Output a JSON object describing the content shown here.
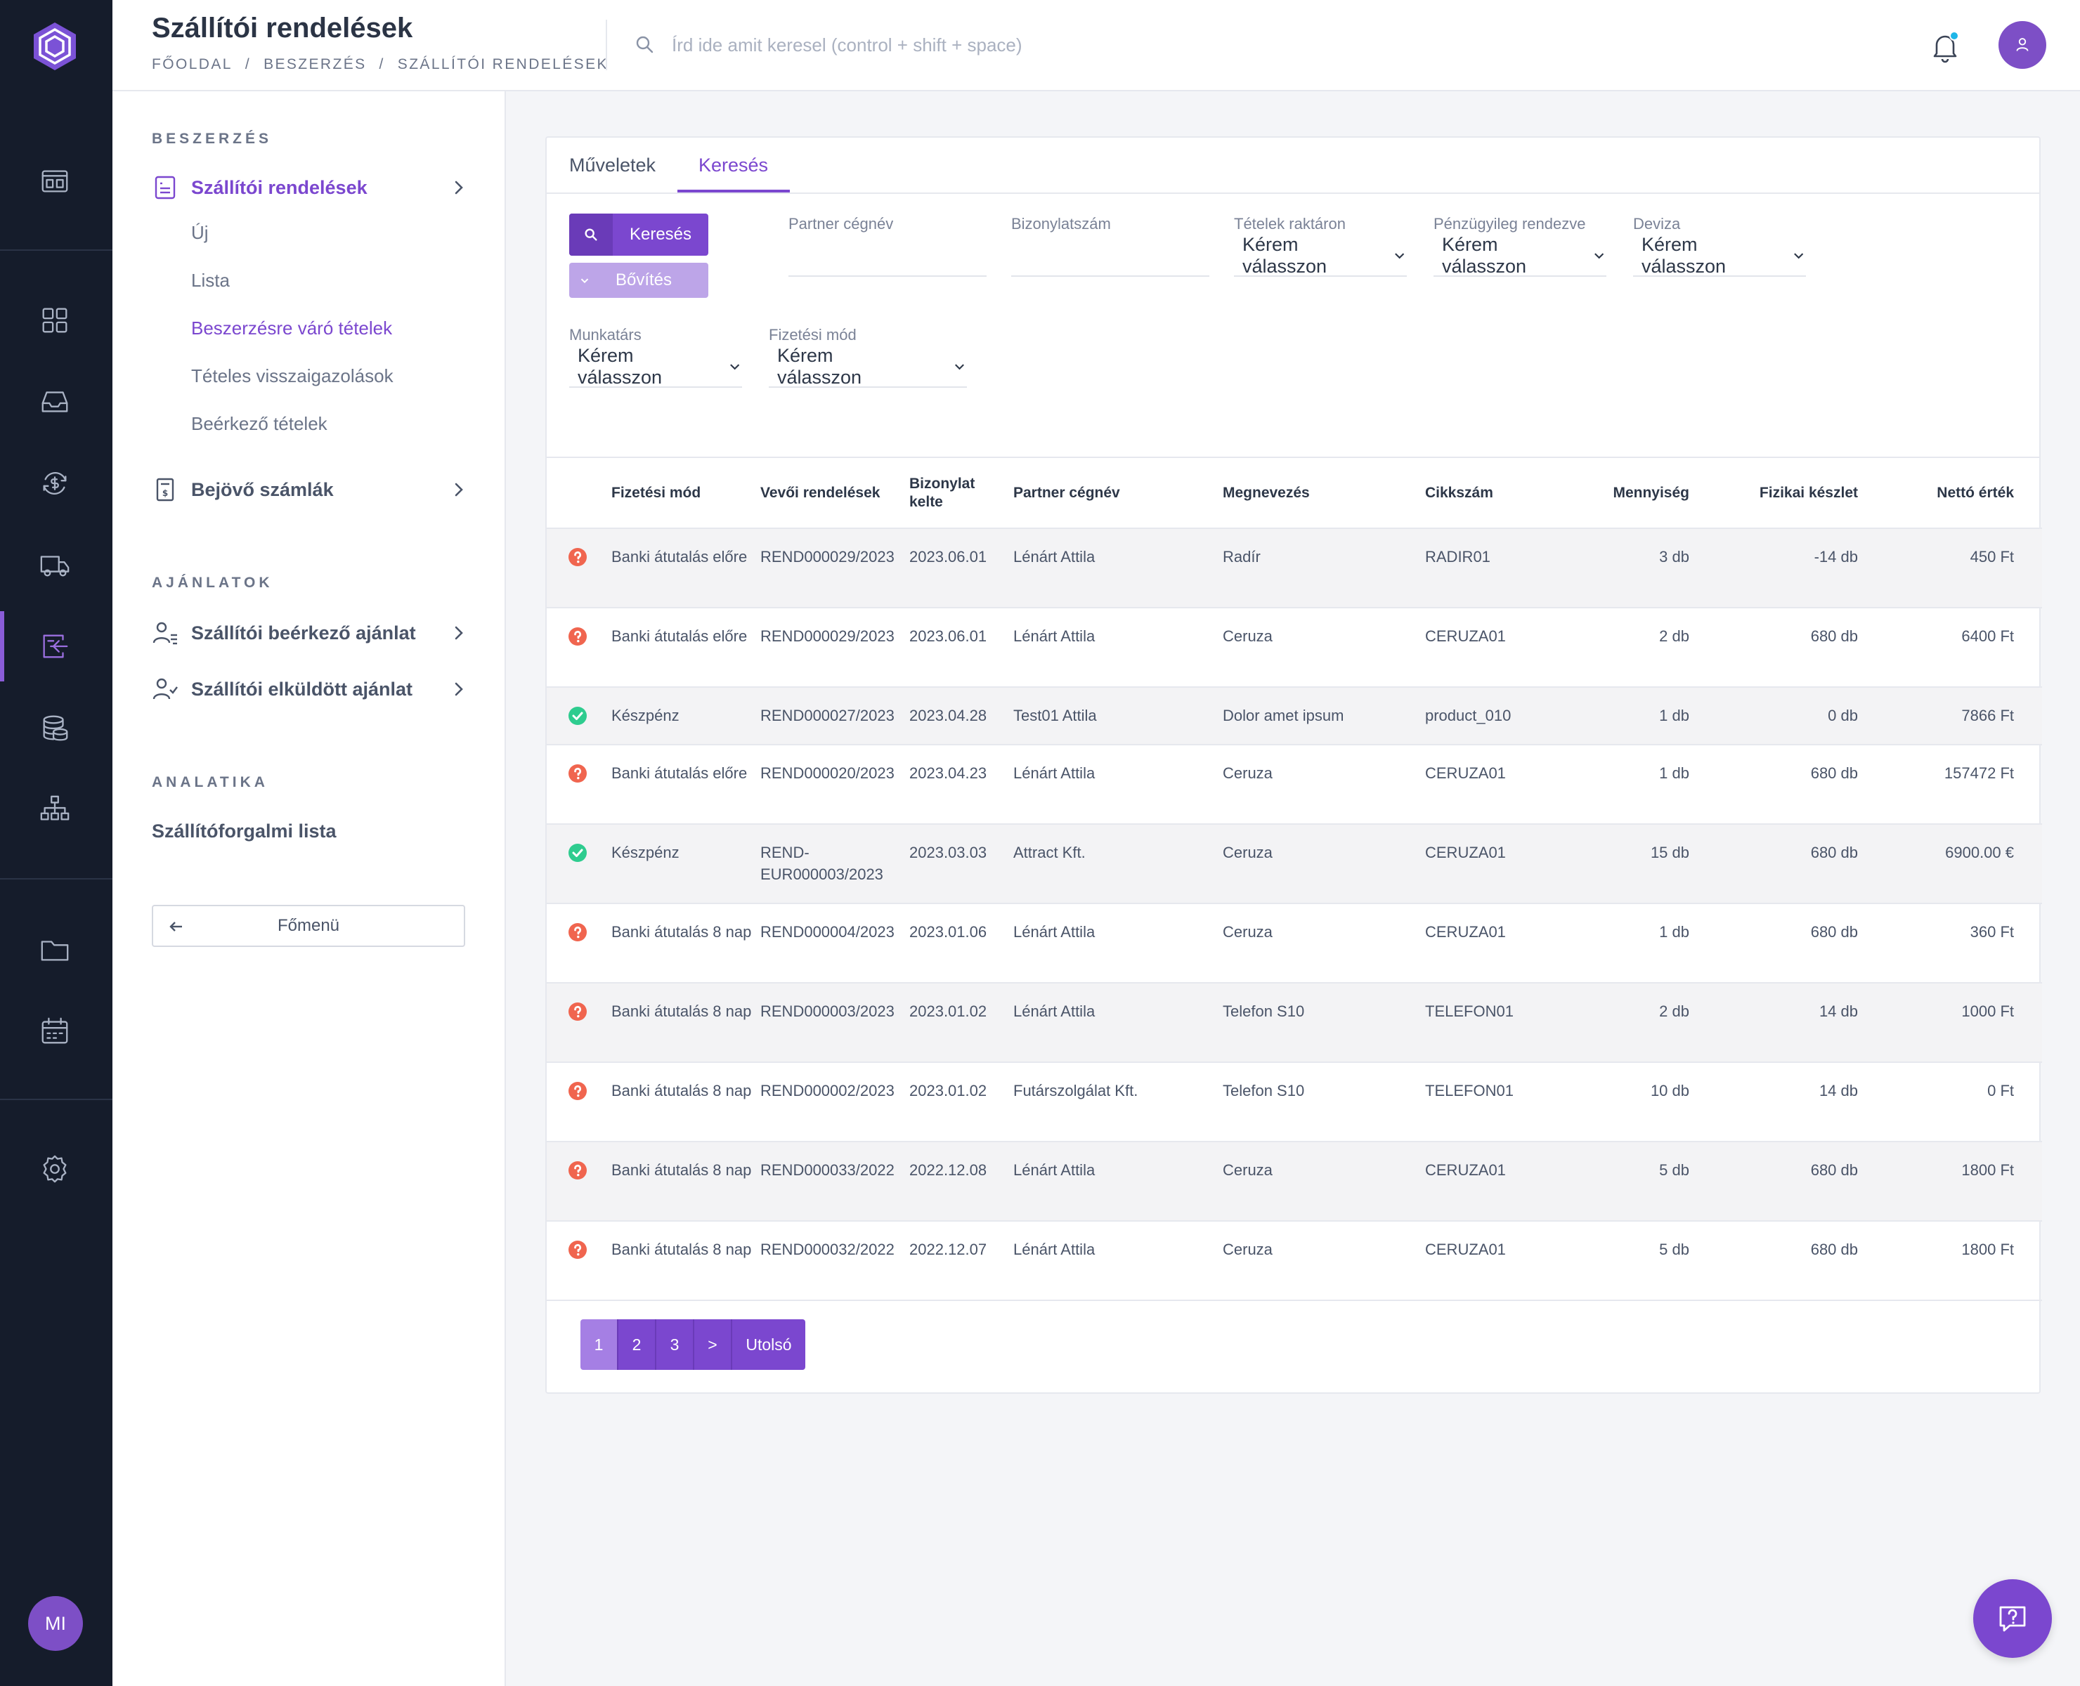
{
  "header": {
    "title": "Szállítói rendelések",
    "breadcrumb": [
      "FŐOLDAL",
      "/",
      "BESZERZÉS",
      "/",
      "SZÁLLÍTÓI RENDELÉSEK"
    ],
    "search_placeholder": "Írd ide amit keresel (control + shift + space)"
  },
  "rail": {
    "avatar_initials": "MI",
    "icons": [
      "dashboard-icon",
      "grid-icon",
      "inbox-icon",
      "currency-exchange-icon",
      "truck-icon",
      "purchase-icon",
      "coins-icon",
      "org-chart-icon",
      "folder-icon",
      "calendar-icon",
      "settings-icon"
    ]
  },
  "subnav": {
    "section_purchase": "BESZERZÉS",
    "supplier_orders": "Szállítói rendelések",
    "sub_items": [
      "Új",
      "Lista",
      "Beszerzésre váró tételek",
      "Tételes visszaigazolások",
      "Beérkező tételek"
    ],
    "incoming_invoices": "Bejövő számlák",
    "section_offers": "AJÁNLATOK",
    "supplier_incoming_offer": "Szállítói beérkező ajánlat",
    "supplier_sent_offer": "Szállítói elküldött ajánlat",
    "section_analytics": "ANALATIKA",
    "supplier_turnover_list": "Szállítóforgalmi lista",
    "back_label": "Főmenü"
  },
  "tabs": {
    "operations": "Műveletek",
    "search": "Keresés"
  },
  "filters": {
    "search_button": "Keresés",
    "expand_button": "Bővítés",
    "partner_label": "Partner cégnév",
    "partner_value": "",
    "doc_number_label": "Bizonylatszám",
    "doc_number_value": "",
    "stock_label": "Tételek raktáron",
    "financial_label": "Pénzügyileg rendezve",
    "currency_label": "Deviza",
    "employee_label": "Munkatárs",
    "payment_label": "Fizetési mód",
    "select_placeholder": "Kérem válasszon"
  },
  "colors": {
    "accent": "#7b47cf",
    "status_ok": "#2ecc8f",
    "status_warn": "#f0654f"
  },
  "table": {
    "columns": {
      "payment": "Fizetési mód",
      "orders": "Vevői rendelések",
      "date": "Bizonylat kelte",
      "partner": "Partner cégnév",
      "name": "Megnevezés",
      "sku": "Cikkszám",
      "qty": "Mennyiség",
      "stock": "Fizikai készlet",
      "net": "Nettó érték"
    },
    "rows": [
      {
        "status": "warn",
        "payment": "Banki átutalás előre",
        "order": "REND000029/2023",
        "date": "2023.06.01",
        "partner": "Lénárt Attila",
        "name": "Radír",
        "sku": "RADIR01",
        "qty": "3 db",
        "stock": "-14 db",
        "net": "450 Ft"
      },
      {
        "status": "warn",
        "payment": "Banki átutalás előre",
        "order": "REND000029/2023",
        "date": "2023.06.01",
        "partner": "Lénárt Attila",
        "name": "Ceruza",
        "sku": "CERUZA01",
        "qty": "2 db",
        "stock": "680 db",
        "net": "6400 Ft"
      },
      {
        "status": "ok",
        "payment": "Készpénz",
        "order": "REND000027/2023",
        "date": "2023.04.28",
        "partner": "Test01 Attila",
        "name": "Dolor amet ipsum",
        "sku": "product_010",
        "qty": "1 db",
        "stock": "0 db",
        "net": "7866 Ft"
      },
      {
        "status": "warn",
        "payment": "Banki átutalás előre",
        "order": "REND000020/2023",
        "date": "2023.04.23",
        "partner": "Lénárt Attila",
        "name": "Ceruza",
        "sku": "CERUZA01",
        "qty": "1 db",
        "stock": "680 db",
        "net": "157472 Ft"
      },
      {
        "status": "ok",
        "payment": "Készpénz",
        "order": "REND-EUR000003/2023",
        "date": "2023.03.03",
        "partner": "Attract Kft.",
        "name": "Ceruza",
        "sku": "CERUZA01",
        "qty": "15 db",
        "stock": "680 db",
        "net": "6900.00 €"
      },
      {
        "status": "warn",
        "payment": "Banki átutalás 8 nap",
        "order": "REND000004/2023",
        "date": "2023.01.06",
        "partner": "Lénárt Attila",
        "name": "Ceruza",
        "sku": "CERUZA01",
        "qty": "1 db",
        "stock": "680 db",
        "net": "360 Ft"
      },
      {
        "status": "warn",
        "payment": "Banki átutalás 8 nap",
        "order": "REND000003/2023",
        "date": "2023.01.02",
        "partner": "Lénárt Attila",
        "name": "Telefon S10",
        "sku": "TELEFON01",
        "qty": "2 db",
        "stock": "14 db",
        "net": "1000 Ft"
      },
      {
        "status": "warn",
        "payment": "Banki átutalás 8 nap",
        "order": "REND000002/2023",
        "date": "2023.01.02",
        "partner": "Futárszolgálat Kft.",
        "name": "Telefon S10",
        "sku": "TELEFON01",
        "qty": "10 db",
        "stock": "14 db",
        "net": "0 Ft"
      },
      {
        "status": "warn",
        "payment": "Banki átutalás 8 nap",
        "order": "REND000033/2022",
        "date": "2022.12.08",
        "partner": "Lénárt Attila",
        "name": "Ceruza",
        "sku": "CERUZA01",
        "qty": "5 db",
        "stock": "680 db",
        "net": "1800 Ft"
      },
      {
        "status": "warn",
        "payment": "Banki átutalás 8 nap",
        "order": "REND000032/2022",
        "date": "2022.12.07",
        "partner": "Lénárt Attila",
        "name": "Ceruza",
        "sku": "CERUZA01",
        "qty": "5 db",
        "stock": "680 db",
        "net": "1800 Ft"
      }
    ]
  },
  "pagination": {
    "pages": [
      "1",
      "2",
      "3"
    ],
    "current": "1",
    "next": ">",
    "last": "Utolsó"
  }
}
